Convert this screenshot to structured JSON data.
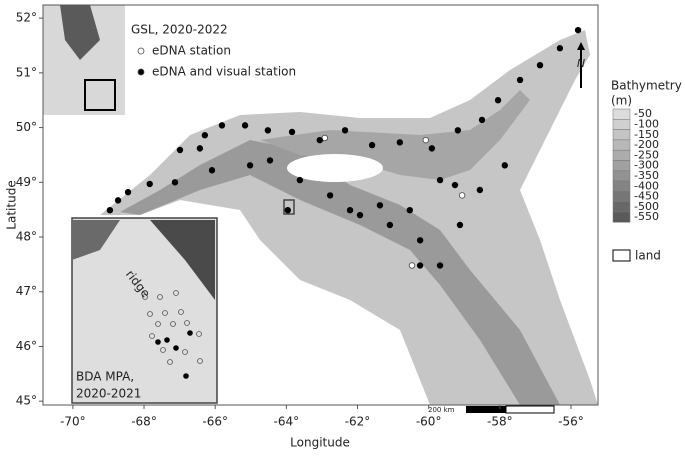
{
  "chart_data": {
    "type": "scatter",
    "title": "GSL, 2020-2022",
    "x_label": "Longitude",
    "y_label": "Latitude",
    "xlim": [
      -70.84,
      -55.24
    ],
    "ylim": [
      44.93,
      52.24
    ],
    "xticks": [
      {
        "value": -70,
        "label": "-70°"
      },
      {
        "value": -68,
        "label": "-68°"
      },
      {
        "value": -66,
        "label": "-66°"
      },
      {
        "value": -64,
        "label": "-64°"
      },
      {
        "value": -62,
        "label": "-62°"
      },
      {
        "value": -60,
        "label": "-60°"
      },
      {
        "value": -58,
        "label": "-58°"
      },
      {
        "value": -56,
        "label": "-56°"
      }
    ],
    "yticks": [
      {
        "value": 45,
        "label": "45°"
      },
      {
        "value": 46,
        "label": "46°"
      },
      {
        "value": 47,
        "label": "47°"
      },
      {
        "value": 48,
        "label": "48°"
      },
      {
        "value": 49,
        "label": "49°"
      },
      {
        "value": 50,
        "label": "50°"
      },
      {
        "value": 51,
        "label": "51°"
      },
      {
        "value": 52,
        "label": "52°"
      }
    ],
    "series": [
      {
        "name": "eDNA station",
        "color": "#ffffff",
        "x": [
          -62.92,
          -60.08,
          -60.47,
          -59.06
        ],
        "y": [
          49.81,
          49.77,
          47.48,
          48.76
        ]
      },
      {
        "name": "eDNA and visual station",
        "color": "#000000",
        "x": [
          -68.96,
          -68.73,
          -68.45,
          -67.84,
          -67.13,
          -66.99,
          -66.43,
          -66.29,
          -65.81,
          -65.16,
          -64.52,
          -63.84,
          -63.06,
          -62.35,
          -61.59,
          -60.81,
          -59.91,
          -59.18,
          -58.5,
          -58.05,
          -57.43,
          -56.87,
          -56.31,
          -55.8,
          -66.09,
          -65.02,
          -64.46,
          -63.62,
          -62.77,
          -61.93,
          -61.09,
          -60.24,
          -59.68,
          -59.12,
          -58.56,
          -57.86,
          -59.68,
          -60.53,
          -61.37,
          -63.96,
          -62.21,
          -59.26,
          -60.24
        ],
        "y": [
          48.49,
          48.67,
          48.82,
          48.97,
          49.0,
          49.59,
          49.62,
          49.86,
          50.04,
          50.04,
          49.95,
          49.92,
          49.77,
          49.95,
          49.68,
          49.73,
          49.62,
          49.95,
          50.14,
          50.5,
          50.87,
          51.14,
          51.45,
          51.78,
          49.22,
          49.31,
          49.4,
          49.04,
          48.76,
          48.4,
          48.22,
          47.94,
          47.48,
          48.22,
          48.86,
          49.31,
          49.04,
          48.49,
          48.58,
          48.49,
          48.49,
          48.95,
          47.48
        ]
      }
    ],
    "bathymetry": {
      "title": [
        "Bathymetry",
        "(m)"
      ],
      "labels": [
        "-50",
        "-100",
        "-150",
        "-200",
        "-250",
        "-300",
        "-350",
        "-400",
        "-450",
        "-500",
        "-550"
      ],
      "colors": [
        "#dcdcdc",
        "#d0d0d0",
        "#c4c4c4",
        "#b8b8b8",
        "#acacac",
        "#a0a0a0",
        "#929292",
        "#848484",
        "#767676",
        "#686868",
        "#5a5a5a"
      ]
    },
    "land_label": "land",
    "north_label": "N",
    "scale_label": "200 km",
    "inset": {
      "label": "ridge",
      "title": [
        "BDA MPA,",
        "2020-2021"
      ]
    }
  }
}
